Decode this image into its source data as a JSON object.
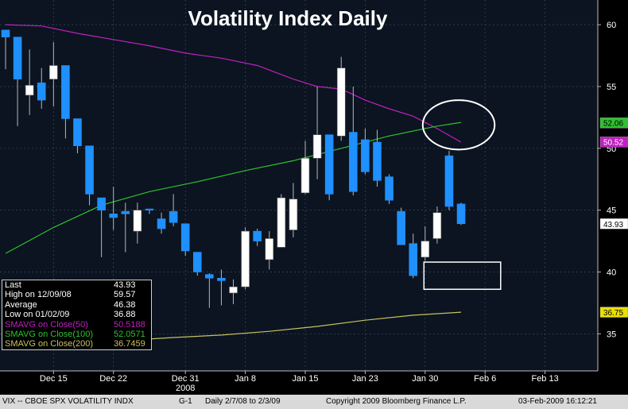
{
  "chart_data": {
    "type": "candlestick",
    "title": "Volatility Index Daily",
    "ylim": [
      32,
      62
    ],
    "y_ticks": [
      35,
      40,
      45,
      50,
      55,
      60
    ],
    "x_ticks": [
      {
        "label": "Dec 15",
        "index": 4
      },
      {
        "label": "Dec 22",
        "index": 9
      },
      {
        "label": "Dec 31",
        "index": 15
      },
      {
        "label": "Jan 8",
        "index": 20
      },
      {
        "label": "Jan 15",
        "index": 25
      },
      {
        "label": "Jan 23",
        "index": 30
      },
      {
        "label": "Jan 30",
        "index": 35
      },
      {
        "label": "Feb 6",
        "index": 40
      },
      {
        "label": "Feb 13",
        "index": 45
      }
    ],
    "year_label": "2008",
    "candles": [
      {
        "o": 59.57,
        "h": 59.57,
        "l": 56.4,
        "c": 59.0
      },
      {
        "o": 59.0,
        "h": 59.0,
        "l": 51.8,
        "c": 55.6
      },
      {
        "o": 54.3,
        "h": 58.0,
        "l": 52.7,
        "c": 55.1
      },
      {
        "o": 55.3,
        "h": 56.5,
        "l": 53.2,
        "c": 53.9
      },
      {
        "o": 55.6,
        "h": 58.6,
        "l": 53.4,
        "c": 56.7
      },
      {
        "o": 56.7,
        "h": 56.7,
        "l": 50.8,
        "c": 52.4
      },
      {
        "o": 52.4,
        "h": 52.4,
        "l": 49.6,
        "c": 50.2
      },
      {
        "o": 50.2,
        "h": 50.2,
        "l": 45.4,
        "c": 46.3
      },
      {
        "o": 46.0,
        "h": 46.0,
        "l": 41.2,
        "c": 45.0
      },
      {
        "o": 44.7,
        "h": 46.9,
        "l": 43.4,
        "c": 44.4
      },
      {
        "o": 44.9,
        "h": 45.6,
        "l": 41.6,
        "c": 44.7
      },
      {
        "o": 43.3,
        "h": 45.6,
        "l": 42.3,
        "c": 45.0
      },
      {
        "o": 45.1,
        "h": 45.1,
        "l": 44.7,
        "c": 45.0
      },
      {
        "o": 44.3,
        "h": 44.8,
        "l": 43.1,
        "c": 43.5
      },
      {
        "o": 44.9,
        "h": 46.3,
        "l": 43.7,
        "c": 44.0
      },
      {
        "o": 43.9,
        "h": 43.9,
        "l": 41.3,
        "c": 41.7
      },
      {
        "o": 41.6,
        "h": 41.6,
        "l": 39.7,
        "c": 40.0
      },
      {
        "o": 39.8,
        "h": 39.9,
        "l": 37.1,
        "c": 39.5
      },
      {
        "o": 39.5,
        "h": 40.2,
        "l": 37.3,
        "c": 39.3
      },
      {
        "o": 38.3,
        "h": 39.4,
        "l": 37.4,
        "c": 38.8
      },
      {
        "o": 38.8,
        "h": 43.6,
        "l": 38.6,
        "c": 43.3
      },
      {
        "o": 43.3,
        "h": 43.5,
        "l": 42.1,
        "c": 42.5
      },
      {
        "o": 41.0,
        "h": 43.3,
        "l": 40.2,
        "c": 42.7
      },
      {
        "o": 42.0,
        "h": 46.3,
        "l": 42.0,
        "c": 46.0
      },
      {
        "o": 43.4,
        "h": 47.2,
        "l": 42.8,
        "c": 45.9
      },
      {
        "o": 46.4,
        "h": 50.6,
        "l": 46.3,
        "c": 49.2
      },
      {
        "o": 49.2,
        "h": 55.0,
        "l": 47.5,
        "c": 51.1
      },
      {
        "o": 51.1,
        "h": 51.1,
        "l": 45.8,
        "c": 46.3
      },
      {
        "o": 51.0,
        "h": 57.4,
        "l": 50.6,
        "c": 56.5
      },
      {
        "o": 51.3,
        "h": 55.0,
        "l": 46.2,
        "c": 46.5
      },
      {
        "o": 50.7,
        "h": 51.6,
        "l": 47.9,
        "c": 48.1
      },
      {
        "o": 50.5,
        "h": 51.5,
        "l": 46.9,
        "c": 47.4
      },
      {
        "o": 47.7,
        "h": 47.9,
        "l": 45.5,
        "c": 45.8
      },
      {
        "o": 44.9,
        "h": 45.2,
        "l": 42.2,
        "c": 42.2
      },
      {
        "o": 42.3,
        "h": 43.1,
        "l": 39.5,
        "c": 39.7
      },
      {
        "o": 41.2,
        "h": 43.7,
        "l": 40.9,
        "c": 42.5
      },
      {
        "o": 42.7,
        "h": 45.3,
        "l": 42.3,
        "c": 44.8
      },
      {
        "o": 49.4,
        "h": 49.8,
        "l": 45.0,
        "c": 45.3
      },
      {
        "o": 45.5,
        "h": 45.6,
        "l": 43.8,
        "c": 43.9
      }
    ],
    "series": [
      {
        "name": "SMAVG on Close(50)",
        "color": "#c020c0",
        "label": "50.52",
        "points": [
          [
            0,
            60.0
          ],
          [
            3,
            59.9
          ],
          [
            6,
            59.3
          ],
          [
            9,
            58.8
          ],
          [
            12,
            58.3
          ],
          [
            15,
            57.7
          ],
          [
            18,
            57.3
          ],
          [
            21,
            56.7
          ],
          [
            24,
            55.6
          ],
          [
            26,
            55.0
          ],
          [
            28,
            54.8
          ],
          [
            30,
            53.9
          ],
          [
            32,
            53.2
          ],
          [
            34,
            52.6
          ],
          [
            36,
            51.6
          ],
          [
            38,
            50.5
          ]
        ]
      },
      {
        "name": "SMAVG on Close(100)",
        "color": "#30c030",
        "label": "52.06",
        "points": [
          [
            0,
            41.5
          ],
          [
            4,
            43.6
          ],
          [
            8,
            45.4
          ],
          [
            12,
            46.5
          ],
          [
            16,
            47.3
          ],
          [
            20,
            48.2
          ],
          [
            24,
            49.0
          ],
          [
            28,
            50.0
          ],
          [
            32,
            51.0
          ],
          [
            36,
            51.8
          ],
          [
            38,
            52.1
          ]
        ]
      },
      {
        "name": "SMAVG on Close(200)",
        "color": "#c8c060",
        "label": "36.75",
        "points": [
          [
            9,
            34.4
          ],
          [
            14,
            34.7
          ],
          [
            18,
            34.9
          ],
          [
            22,
            35.2
          ],
          [
            26,
            35.6
          ],
          [
            30,
            36.1
          ],
          [
            34,
            36.5
          ],
          [
            38,
            36.75
          ]
        ]
      }
    ],
    "last_price_label": "43.93",
    "annotations": [
      {
        "type": "ellipse",
        "center": [
          37.8,
          51.9
        ],
        "rx_index": 3.0,
        "ry_value": 2.0
      },
      {
        "type": "rectangle",
        "index_from": 34.9,
        "index_to": 41.3,
        "value_from": 38.6,
        "value_to": 40.8
      }
    ]
  },
  "stats": [
    {
      "label": "Last",
      "value": "43.93",
      "color": "#ffffff"
    },
    {
      "label": "High on 12/09/08",
      "value": "59.57",
      "color": "#ffffff"
    },
    {
      "label": "Average",
      "value": "46.38",
      "color": "#ffffff"
    },
    {
      "label": "Low on 01/02/09",
      "value": "36.88",
      "color": "#ffffff"
    },
    {
      "label": "SMAVG on Close(50)",
      "value": "50.5188",
      "color": "#c020c0"
    },
    {
      "label": "SMAVG on Close(100)",
      "value": "52.0571",
      "color": "#30c030"
    },
    {
      "label": "SMAVG on Close(200)",
      "value": "36.7459",
      "color": "#c8c060"
    }
  ],
  "footer": {
    "security": "VIX -- CBOE SPX VOLATILITY INDX",
    "page": "G-1",
    "range": "Daily  2/7/08 to 2/3/09",
    "copyright": "Copyright 2009 Bloomberg Finance L.P.",
    "timestamp": "03-Feb-2009 16:12:21"
  }
}
